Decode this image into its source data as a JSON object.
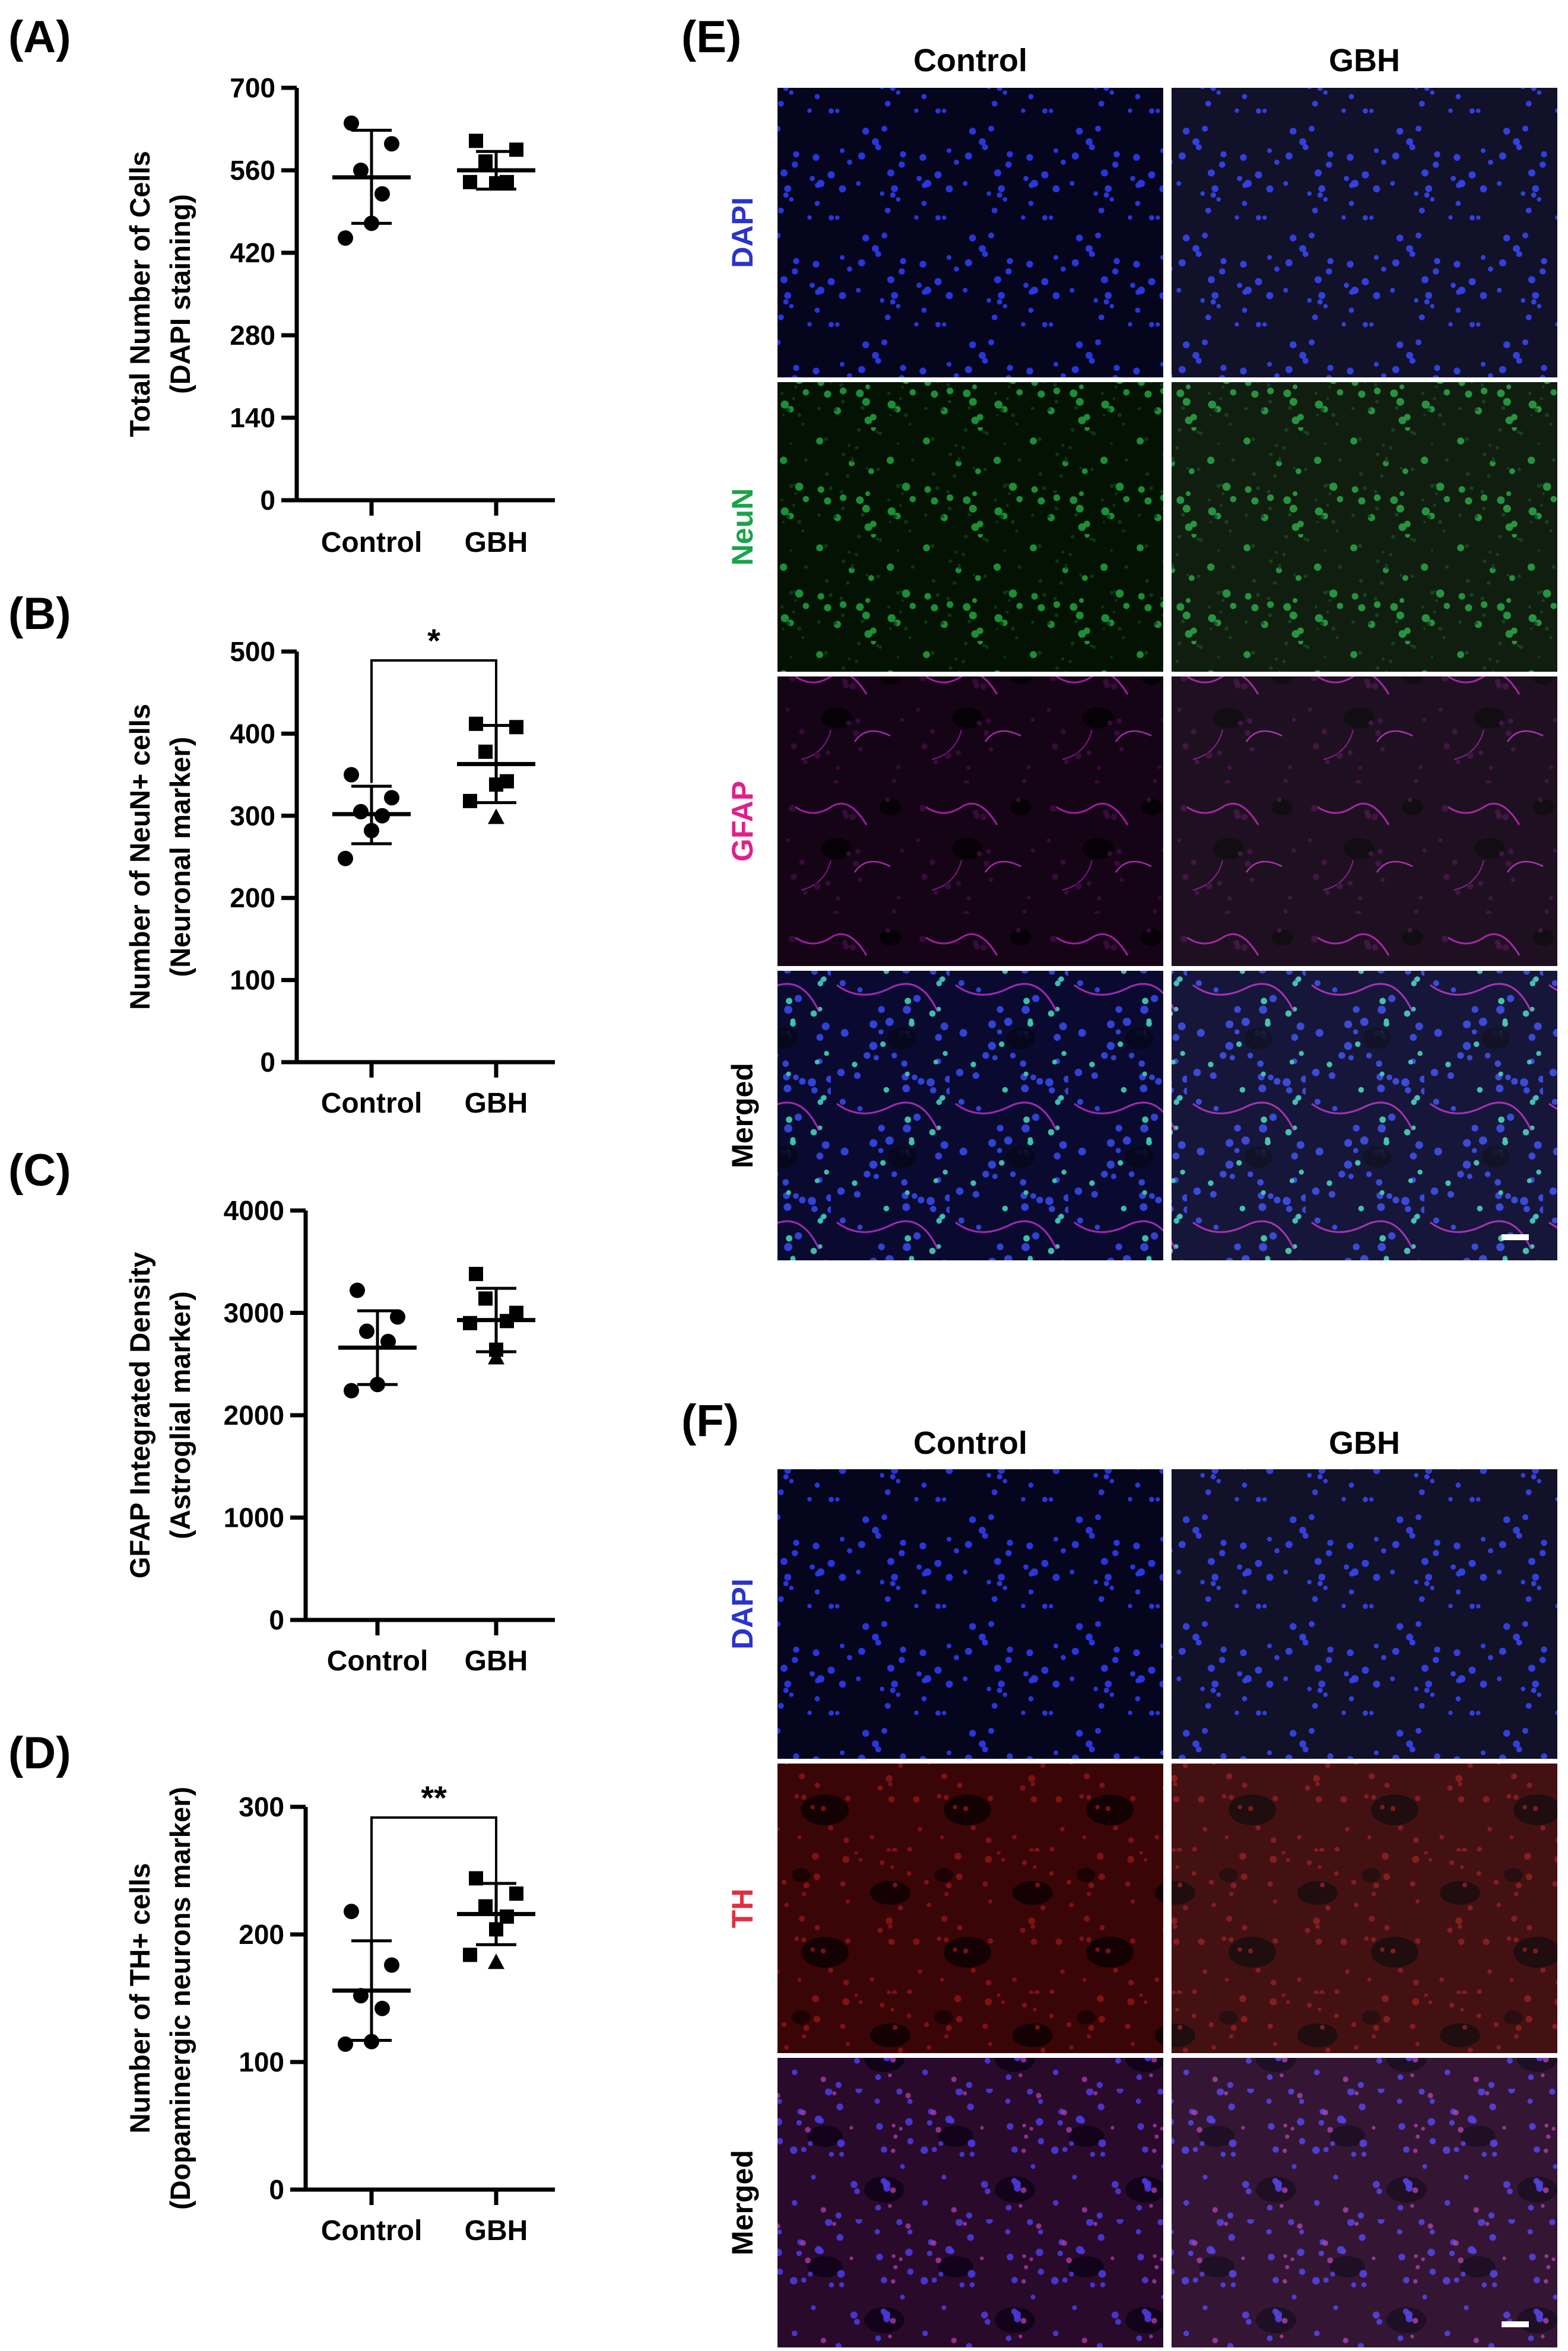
{
  "chart_data": [
    {
      "panel": "(A)",
      "type": "scatter",
      "ylabel": [
        "Total Number of Cells",
        "(DAPI staining)"
      ],
      "categories": [
        "Control",
        "GBH"
      ],
      "yticks": [
        0,
        140,
        280,
        420,
        560,
        700
      ],
      "ylim": [
        0,
        700
      ],
      "series": [
        {
          "category": "Control",
          "marker": "circle",
          "points": [
            640,
            605,
            560,
            520,
            470,
            445
          ],
          "mean": 548,
          "sd_low": 470,
          "sd_high": 628
        },
        {
          "category": "GBH",
          "marker": "square",
          "points": [
            610,
            595,
            575,
            540,
            538,
            540
          ],
          "mean": 560,
          "sd_low": 528,
          "sd_high": 592
        }
      ],
      "significance": null
    },
    {
      "panel": "(B)",
      "type": "scatter",
      "ylabel": [
        "Number of NeuN+ cells",
        "(Neuronal marker)"
      ],
      "categories": [
        "Control",
        "GBH"
      ],
      "yticks": [
        0,
        100,
        200,
        300,
        400,
        500
      ],
      "ylim": [
        0,
        500
      ],
      "series": [
        {
          "category": "Control",
          "marker": "circle",
          "points": [
            350,
            322,
            305,
            300,
            282,
            248
          ],
          "mean": 302,
          "sd_low": 266,
          "sd_high": 336
        },
        {
          "category": "GBH",
          "marker": "square",
          "points": [
            412,
            408,
            378,
            342,
            338,
            318
          ],
          "mean": 363,
          "sd_low": 316,
          "sd_high": 410
        },
        {
          "category": "GBH",
          "marker": "triangle",
          "points": [
            298
          ],
          "mean": null,
          "sd_low": null,
          "sd_high": null
        }
      ],
      "significance": "*"
    },
    {
      "panel": "(C)",
      "type": "scatter",
      "ylabel": [
        "GFAP Integrated Density",
        "(Astroglial marker)"
      ],
      "categories": [
        "Control",
        "GBH"
      ],
      "yticks": [
        0,
        1000,
        2000,
        3000,
        4000
      ],
      "ylim": [
        0,
        4000
      ],
      "series": [
        {
          "category": "Control",
          "marker": "circle",
          "points": [
            3220,
            2960,
            2820,
            2720,
            2300,
            2240
          ],
          "mean": 2660,
          "sd_low": 2300,
          "sd_high": 3020
        },
        {
          "category": "GBH",
          "marker": "square",
          "points": [
            3380,
            3000,
            3140,
            2920,
            2640,
            2900
          ],
          "mean": 2930,
          "sd_low": 2620,
          "sd_high": 3240
        },
        {
          "category": "GBH",
          "marker": "triangle",
          "points": [
            2560
          ],
          "mean": null,
          "sd_low": null,
          "sd_high": null
        }
      ],
      "significance": null
    },
    {
      "panel": "(D)",
      "type": "scatter",
      "ylabel": [
        "Number of TH+ cells",
        "(Dopaminergic neurons marker)"
      ],
      "categories": [
        "Control",
        "GBH"
      ],
      "yticks": [
        0,
        100,
        200,
        300
      ],
      "ylim": [
        0,
        300
      ],
      "series": [
        {
          "category": "Control",
          "marker": "circle",
          "points": [
            218,
            176,
            152,
            142,
            116,
            114
          ],
          "mean": 156,
          "sd_low": 117,
          "sd_high": 195
        },
        {
          "category": "GBH",
          "marker": "square",
          "points": [
            244,
            232,
            222,
            214,
            204,
            184
          ],
          "mean": 216,
          "sd_low": 192,
          "sd_high": 240
        },
        {
          "category": "GBH",
          "marker": "triangle",
          "points": [
            178
          ],
          "mean": null,
          "sd_low": null,
          "sd_high": null
        }
      ],
      "significance": "**"
    }
  ],
  "micrographs": [
    {
      "panel": "(E)",
      "columns": [
        "Control",
        "GBH"
      ],
      "rows": [
        {
          "label": "DAPI",
          "color": "#2a33cc",
          "kind": "dapi"
        },
        {
          "label": "NeuN",
          "color": "#1aa34a",
          "kind": "neun"
        },
        {
          "label": "GFAP",
          "color": "#e0208a",
          "kind": "gfap"
        },
        {
          "label": "Merged",
          "color": "#000000",
          "kind": "merged-e"
        }
      ],
      "scale_bar": true
    },
    {
      "panel": "(F)",
      "columns": [
        "Control",
        "GBH"
      ],
      "rows": [
        {
          "label": "DAPI",
          "color": "#2a33cc",
          "kind": "dapi"
        },
        {
          "label": "TH",
          "color": "#e03040",
          "kind": "th"
        },
        {
          "label": "Merged",
          "color": "#000000",
          "kind": "merged-f"
        }
      ],
      "scale_bar": true
    }
  ]
}
